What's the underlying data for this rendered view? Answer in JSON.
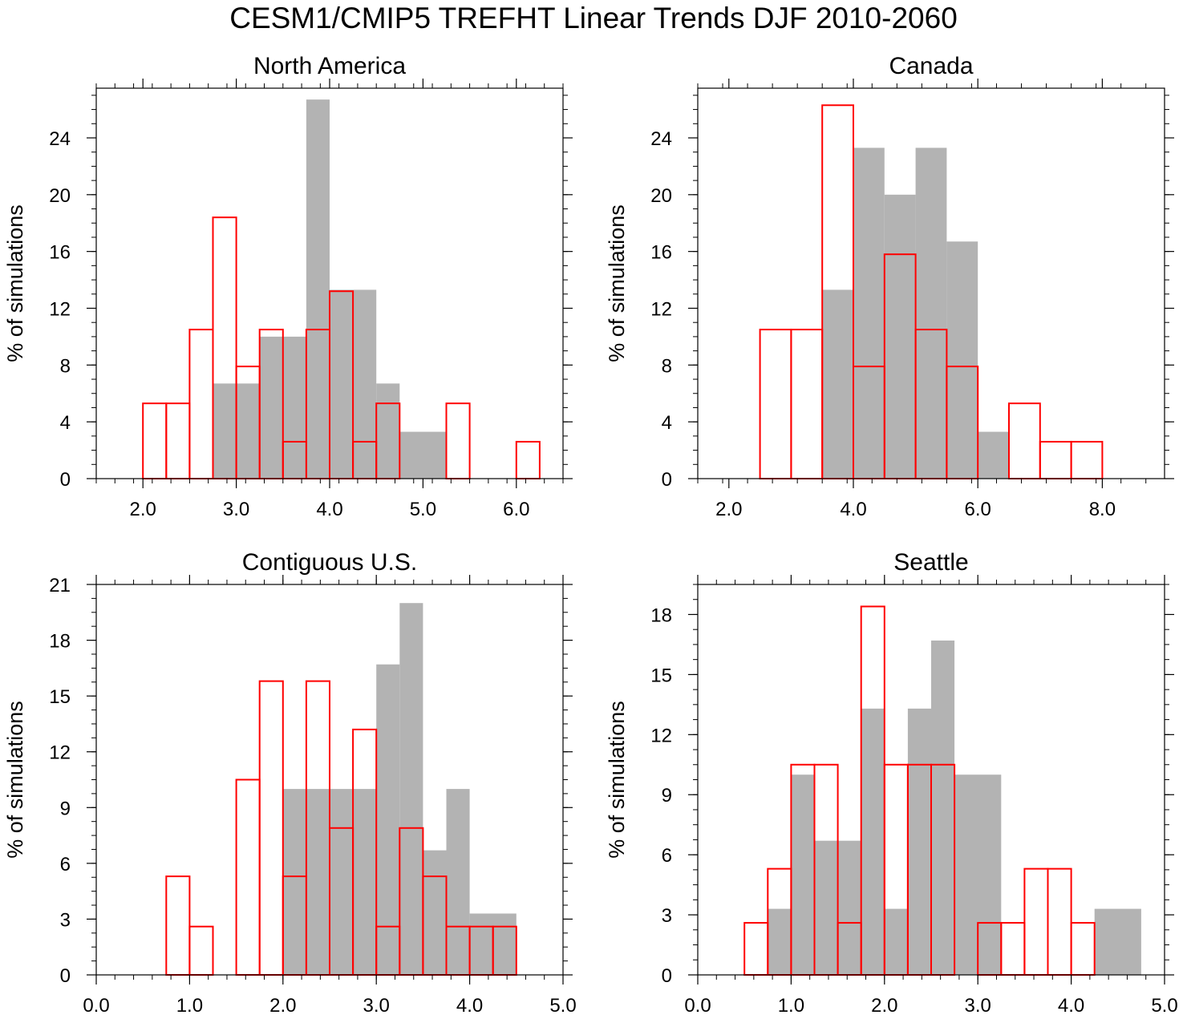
{
  "figure_title": "CESM1/CMIP5 TREFHT Linear Trends DJF 2010-2060",
  "colors": {
    "cesm_fill": "#b3b3b3",
    "cmip5_outline": "#ff0000",
    "axes": "#000000"
  },
  "chart_data": [
    {
      "type": "bar",
      "title": "North America",
      "ylabel": "% of simulations",
      "xlabel": "",
      "xlim": [
        1.5,
        6.5
      ],
      "ylim": [
        0,
        27.5
      ],
      "xticks": [
        2.0,
        3.0,
        4.0,
        5.0,
        6.0
      ],
      "xtick_labels": [
        "2.0",
        "3.0",
        "4.0",
        "5.0",
        "6.0"
      ],
      "yticks": [
        0,
        4,
        8,
        12,
        16,
        20,
        24
      ],
      "ytick_labels": [
        "0",
        "4",
        "8",
        "12",
        "16",
        "20",
        "24"
      ],
      "series": [
        {
          "name": "CESM1",
          "style": "filled-gray",
          "bins": [
            [
              2.75,
              3.25,
              6.7
            ],
            [
              3.25,
              3.75,
              10.0
            ],
            [
              3.75,
              4.0,
              26.7
            ],
            [
              4.0,
              4.5,
              13.3
            ],
            [
              4.5,
              4.75,
              6.7
            ],
            [
              4.75,
              5.25,
              3.3
            ]
          ]
        },
        {
          "name": "CMIP5",
          "style": "red-outline",
          "bins": [
            [
              2.0,
              2.25,
              5.3
            ],
            [
              2.25,
              2.5,
              5.3
            ],
            [
              2.5,
              2.75,
              10.5
            ],
            [
              2.75,
              3.0,
              18.4
            ],
            [
              3.0,
              3.25,
              7.9
            ],
            [
              3.25,
              3.5,
              10.5
            ],
            [
              3.5,
              3.75,
              2.6
            ],
            [
              3.75,
              4.0,
              10.5
            ],
            [
              4.0,
              4.25,
              13.2
            ],
            [
              4.25,
              4.5,
              2.6
            ],
            [
              4.5,
              4.75,
              5.3
            ],
            [
              5.25,
              5.5,
              5.3
            ],
            [
              6.0,
              6.25,
              2.6
            ]
          ]
        }
      ]
    },
    {
      "type": "bar",
      "title": "Canada",
      "ylabel": "% of simulations",
      "xlabel": "",
      "xlim": [
        1.5,
        9.0
      ],
      "ylim": [
        0,
        27.5
      ],
      "xticks": [
        2.0,
        4.0,
        6.0,
        8.0
      ],
      "xtick_labels": [
        "2.0",
        "4.0",
        "6.0",
        "8.0"
      ],
      "yticks": [
        0,
        4,
        8,
        12,
        16,
        20,
        24
      ],
      "ytick_labels": [
        "0",
        "4",
        "8",
        "12",
        "16",
        "20",
        "24"
      ],
      "series": [
        {
          "name": "CESM1",
          "style": "filled-gray",
          "bins": [
            [
              3.5,
              4.0,
              13.3
            ],
            [
              4.0,
              4.5,
              23.3
            ],
            [
              4.5,
              5.0,
              20.0
            ],
            [
              5.0,
              5.5,
              23.3
            ],
            [
              5.5,
              6.0,
              16.7
            ],
            [
              6.0,
              6.5,
              3.3
            ]
          ]
        },
        {
          "name": "CMIP5",
          "style": "red-outline",
          "bins": [
            [
              2.5,
              3.0,
              10.5
            ],
            [
              3.0,
              3.5,
              10.5
            ],
            [
              3.5,
              4.0,
              26.3
            ],
            [
              4.0,
              4.5,
              7.9
            ],
            [
              4.5,
              5.0,
              15.8
            ],
            [
              5.0,
              5.5,
              10.5
            ],
            [
              5.5,
              6.0,
              7.9
            ],
            [
              6.5,
              7.0,
              5.3
            ],
            [
              7.0,
              7.5,
              2.6
            ],
            [
              7.5,
              8.0,
              2.6
            ]
          ]
        }
      ]
    },
    {
      "type": "bar",
      "title": "Contiguous U.S.",
      "ylabel": "% of simulations",
      "xlabel": "",
      "xlim": [
        0.0,
        5.0
      ],
      "ylim": [
        0,
        21
      ],
      "xticks": [
        0.0,
        1.0,
        2.0,
        3.0,
        4.0,
        5.0
      ],
      "xtick_labels": [
        "0.0",
        "1.0",
        "2.0",
        "3.0",
        "4.0",
        "5.0"
      ],
      "yticks": [
        0,
        3,
        6,
        9,
        12,
        15,
        18,
        21
      ],
      "ytick_labels": [
        "0",
        "3",
        "6",
        "9",
        "12",
        "15",
        "18",
        "21"
      ],
      "series": [
        {
          "name": "CESM1",
          "style": "filled-gray",
          "bins": [
            [
              2.0,
              3.0,
              10.0
            ],
            [
              3.0,
              3.25,
              16.7
            ],
            [
              3.25,
              3.5,
              20.0
            ],
            [
              3.5,
              3.75,
              6.7
            ],
            [
              3.75,
              4.0,
              10.0
            ],
            [
              4.0,
              4.5,
              3.3
            ]
          ]
        },
        {
          "name": "CMIP5",
          "style": "red-outline",
          "bins": [
            [
              0.75,
              1.0,
              5.3
            ],
            [
              1.0,
              1.25,
              2.6
            ],
            [
              1.5,
              1.75,
              10.5
            ],
            [
              1.75,
              2.0,
              15.8
            ],
            [
              2.0,
              2.25,
              5.3
            ],
            [
              2.25,
              2.5,
              15.8
            ],
            [
              2.5,
              2.75,
              7.9
            ],
            [
              2.75,
              3.0,
              13.2
            ],
            [
              3.0,
              3.25,
              2.6
            ],
            [
              3.25,
              3.5,
              7.9
            ],
            [
              3.5,
              3.75,
              5.3
            ],
            [
              3.75,
              4.0,
              2.6
            ],
            [
              4.0,
              4.25,
              2.6
            ],
            [
              4.25,
              4.5,
              2.6
            ]
          ]
        }
      ]
    },
    {
      "type": "bar",
      "title": "Seattle",
      "ylabel": "% of simulations",
      "xlabel": "",
      "xlim": [
        0.0,
        5.0
      ],
      "ylim": [
        0,
        19.5
      ],
      "xticks": [
        0.0,
        1.0,
        2.0,
        3.0,
        4.0,
        5.0
      ],
      "xtick_labels": [
        "0.0",
        "1.0",
        "2.0",
        "3.0",
        "4.0",
        "5.0"
      ],
      "yticks": [
        0,
        3,
        6,
        9,
        12,
        15,
        18
      ],
      "ytick_labels": [
        "0",
        "3",
        "6",
        "9",
        "12",
        "15",
        "18"
      ],
      "series": [
        {
          "name": "CESM1",
          "style": "filled-gray",
          "bins": [
            [
              0.75,
              1.0,
              3.3
            ],
            [
              1.0,
              1.25,
              10.0
            ],
            [
              1.25,
              1.75,
              6.7
            ],
            [
              1.75,
              2.0,
              13.3
            ],
            [
              2.0,
              2.25,
              3.3
            ],
            [
              2.25,
              2.5,
              13.3
            ],
            [
              2.5,
              2.75,
              16.7
            ],
            [
              2.75,
              3.25,
              10.0
            ],
            [
              4.25,
              4.75,
              3.3
            ]
          ]
        },
        {
          "name": "CMIP5",
          "style": "red-outline",
          "bins": [
            [
              0.5,
              0.75,
              2.6
            ],
            [
              0.75,
              1.0,
              5.3
            ],
            [
              1.0,
              1.25,
              10.5
            ],
            [
              1.25,
              1.5,
              10.5
            ],
            [
              1.5,
              1.75,
              2.6
            ],
            [
              1.75,
              2.0,
              18.4
            ],
            [
              2.0,
              2.25,
              10.5
            ],
            [
              2.25,
              2.5,
              10.5
            ],
            [
              2.5,
              2.75,
              10.5
            ],
            [
              3.0,
              3.25,
              2.6
            ],
            [
              3.25,
              3.5,
              2.6
            ],
            [
              3.5,
              3.75,
              5.3
            ],
            [
              3.75,
              4.0,
              5.3
            ],
            [
              4.0,
              4.25,
              2.6
            ]
          ]
        }
      ]
    }
  ]
}
